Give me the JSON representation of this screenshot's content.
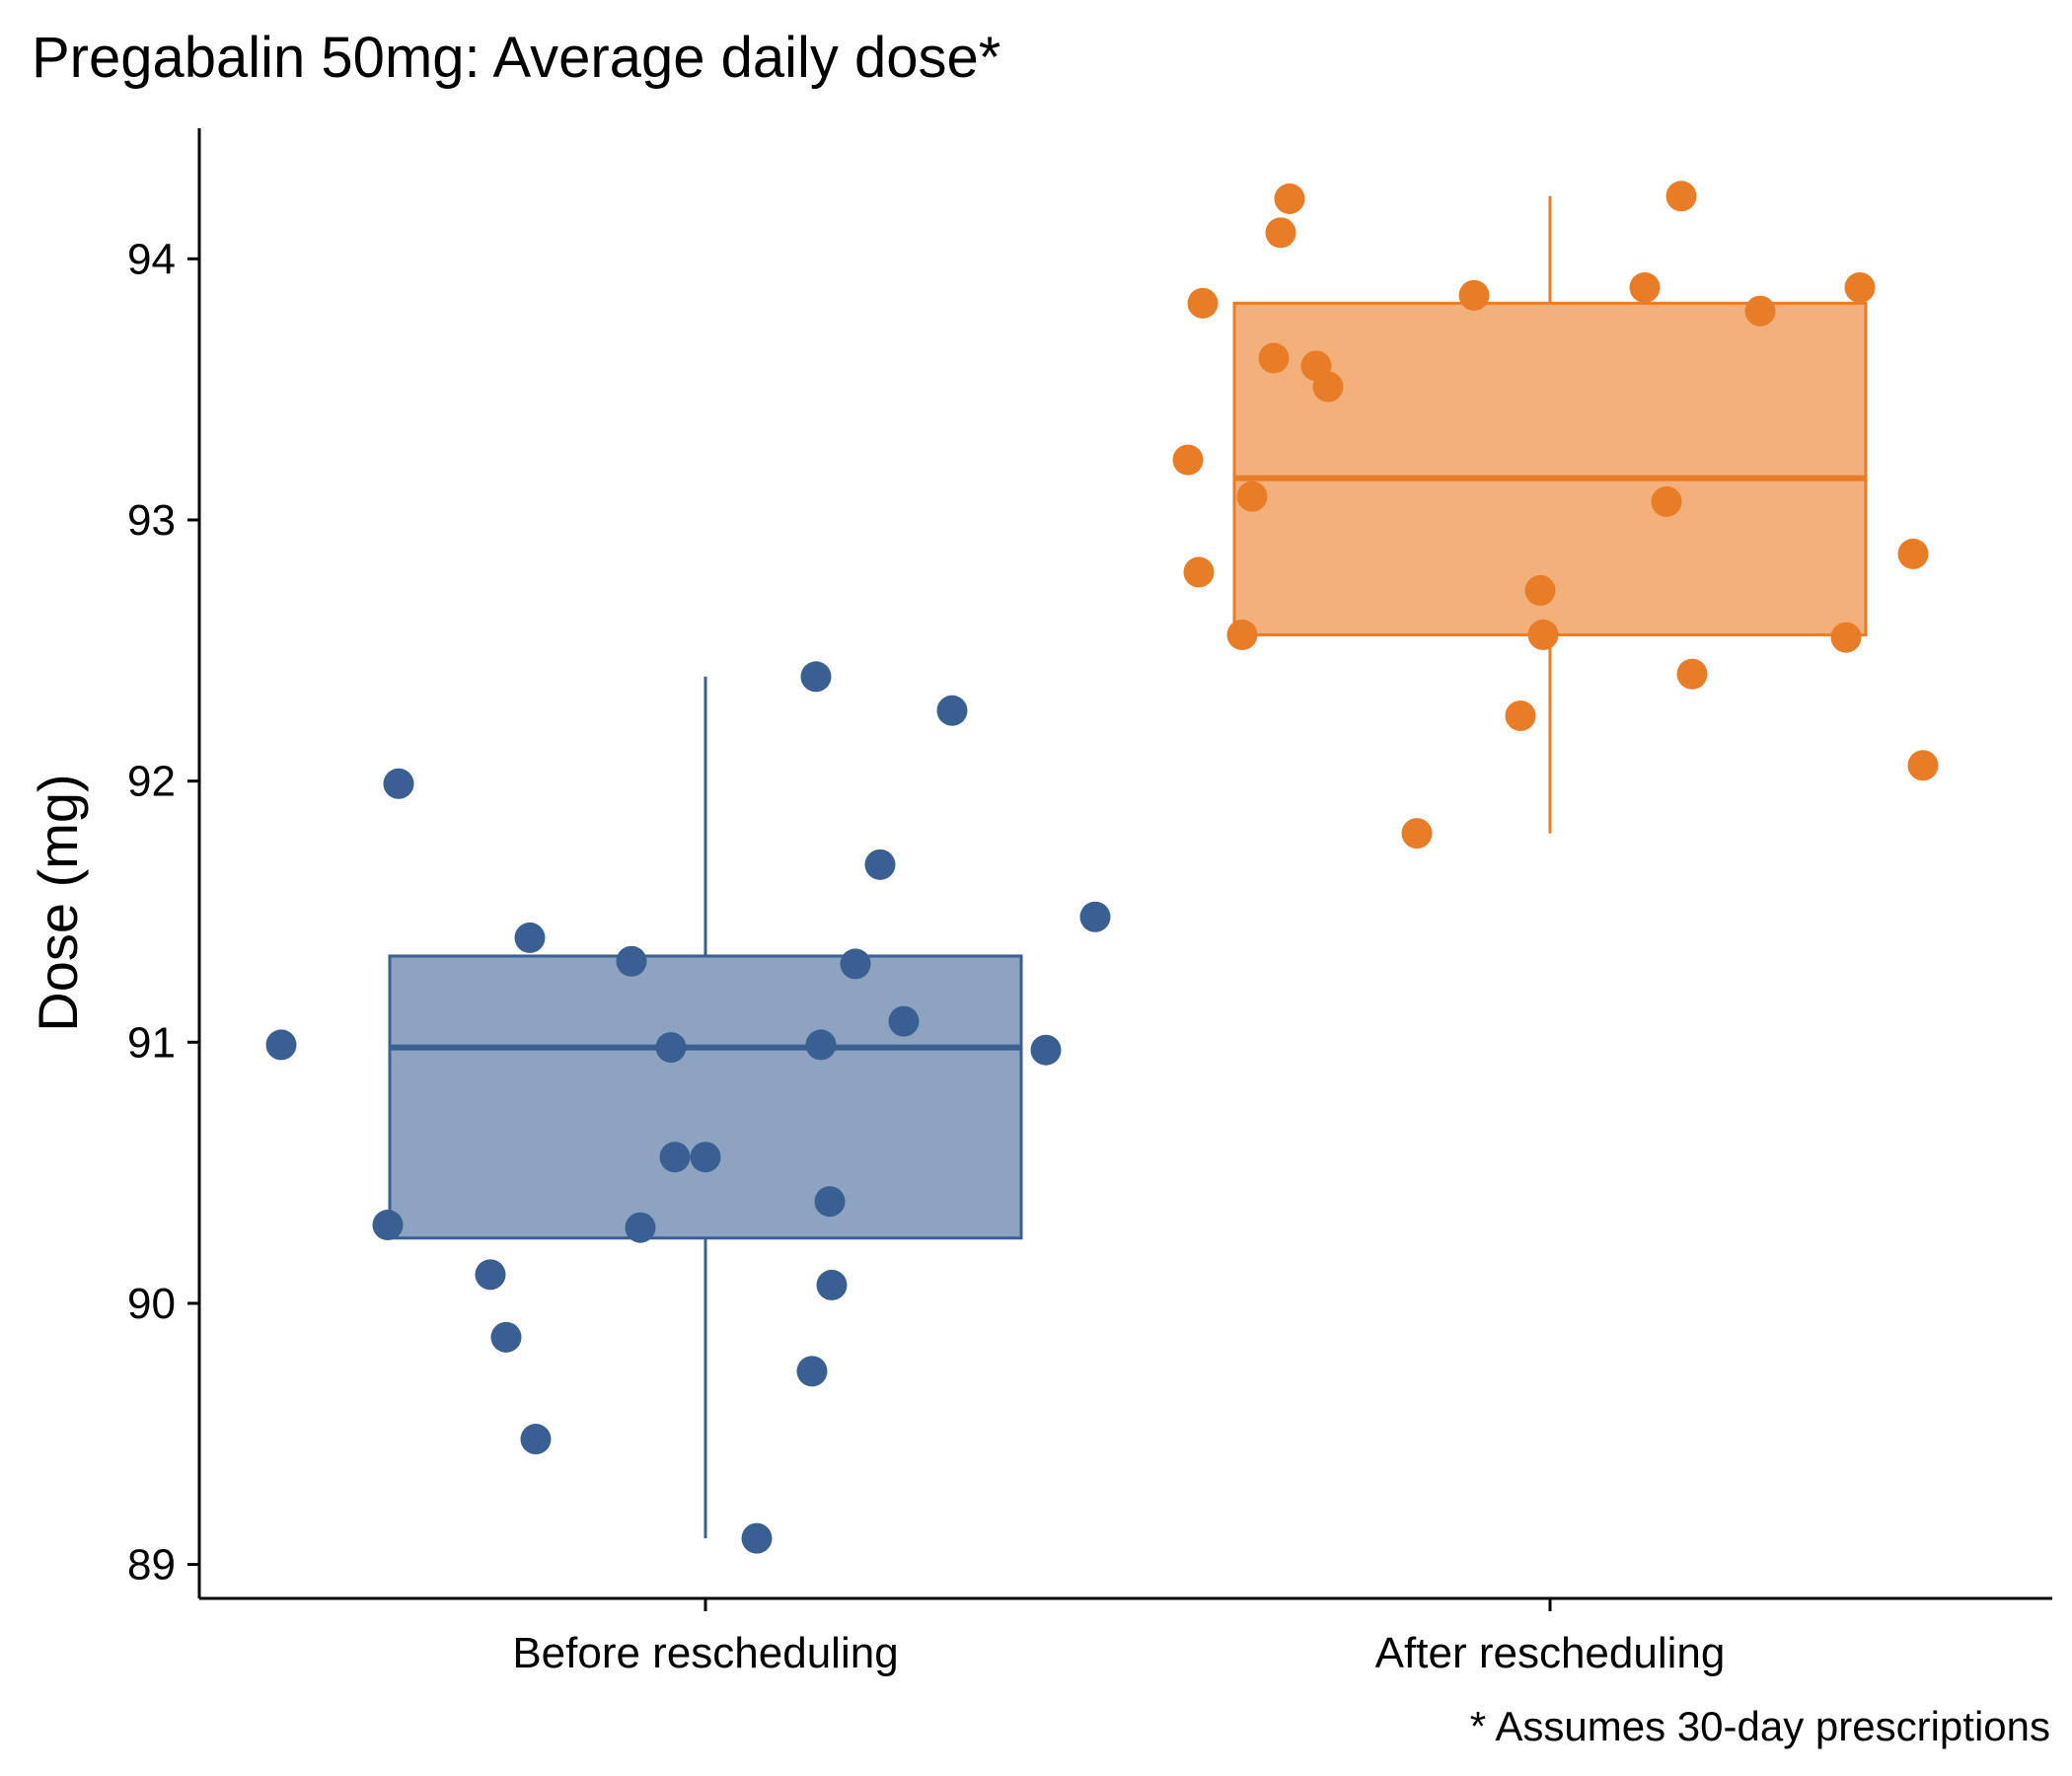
{
  "chart_data": {
    "type": "boxplot",
    "title": "Pregabalin 50mg: Average daily dose*",
    "xlabel": "",
    "ylabel": "Dose (mg)",
    "caption": "* Assumes 30-day prescriptions",
    "ylim": [
      88.87,
      94.5
    ],
    "yticks": [
      89,
      90,
      91,
      92,
      93,
      94
    ],
    "grid": false,
    "legend": "none",
    "categories": [
      "Before rescheduling",
      "After rescheduling"
    ],
    "colors": {
      "Before rescheduling": {
        "stroke": "#3a5f93",
        "fill": "#8da3c1",
        "point": "#3a5f93"
      },
      "After rescheduling": {
        "stroke": "#e87c27",
        "fill": "#f4b07b",
        "point": "#e87c27"
      }
    },
    "boxes": [
      {
        "category": "Before rescheduling",
        "whisker_low": 89.1,
        "q1": 90.25,
        "median": 90.98,
        "q3": 91.33,
        "whisker_high": 92.4
      },
      {
        "category": "After rescheduling",
        "whisker_low": 91.8,
        "q1": 92.56,
        "median": 93.16,
        "q3": 93.83,
        "whisker_high": 94.24
      }
    ],
    "points": [
      {
        "category": "Before rescheduling",
        "values": [
          90.99,
          90.3,
          91.99,
          90.11,
          89.87,
          91.4,
          89.48,
          91.31,
          90.29,
          90.98,
          90.56,
          90.56,
          89.1,
          89.74,
          92.4,
          90.99,
          90.39,
          90.07,
          91.3,
          91.68,
          91.08,
          92.27,
          90.97,
          91.48
        ]
      },
      {
        "category": "After rescheduling",
        "values": [
          93.23,
          92.8,
          93.83,
          92.56,
          93.09,
          93.62,
          94.1,
          94.23,
          93.59,
          93.51,
          91.8,
          93.86,
          92.25,
          92.73,
          92.56,
          93.89,
          93.07,
          94.24,
          92.41,
          93.8,
          92.55,
          93.89,
          92.87,
          92.06
        ]
      }
    ]
  }
}
